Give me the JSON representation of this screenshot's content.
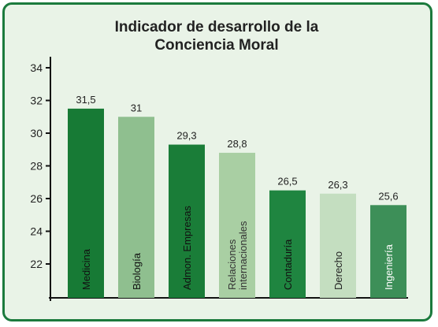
{
  "chart_data": {
    "type": "bar",
    "title_line1": "Indicador de desarrollo de la",
    "title_line2": "Conciencia Moral",
    "xlabel": "",
    "ylabel": "",
    "ylim": [
      20,
      35
    ],
    "yticks": [
      22,
      24,
      26,
      28,
      30,
      32,
      34
    ],
    "grid": false,
    "legend": "none",
    "categories": [
      [
        "Medicina"
      ],
      [
        "Biología"
      ],
      [
        "Admon. Empresas"
      ],
      [
        "Relaciones",
        "internacionales"
      ],
      [
        "Contaduría"
      ],
      [
        "Derecho"
      ],
      [
        "Ingeniería"
      ]
    ],
    "values": [
      31.5,
      31,
      29.3,
      28.8,
      26.5,
      26.3,
      25.6
    ],
    "value_labels": [
      "31,5",
      "31",
      "29,3",
      "28,8",
      "26,5",
      "26,3",
      "25,6"
    ],
    "bar_colors": [
      "#177a35",
      "#8fbf8f",
      "#1a7d38",
      "#a9cfa3",
      "#1f8540",
      "#c4dec0",
      "#3d8f58"
    ],
    "label_colors": [
      "#111111",
      "#111111",
      "#111111",
      "#333333",
      "#111111",
      "#222222",
      "#ffffff"
    ]
  }
}
